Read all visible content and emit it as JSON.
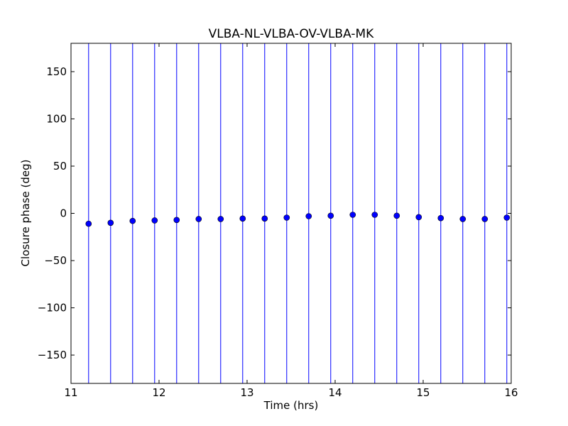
{
  "chart_data": {
    "type": "scatter",
    "title": "VLBA-NL-VLBA-OV-VLBA-MK",
    "xlabel": "Time (hrs)",
    "ylabel": "Closure phase (deg)",
    "xlim": [
      11,
      16
    ],
    "ylim": [
      -180,
      180
    ],
    "xticks": [
      11,
      12,
      13,
      14,
      15,
      16
    ],
    "yticks": [
      -150,
      -100,
      -50,
      0,
      50,
      100,
      150
    ],
    "xtick_labels": [
      "11",
      "12",
      "13",
      "14",
      "15",
      "16"
    ],
    "ytick_labels": [
      "−150",
      "−100",
      "−50",
      "0",
      "50",
      "100",
      "150"
    ],
    "grid": false,
    "colors": {
      "marker": "#0000ff",
      "errorbar": "#0000ff",
      "axes": "#000000"
    },
    "error_bars": {
      "lower": -180,
      "upper": 180
    },
    "points": [
      {
        "x": 11.2,
        "y": -11
      },
      {
        "x": 11.45,
        "y": -10
      },
      {
        "x": 11.7,
        "y": -8
      },
      {
        "x": 11.95,
        "y": -7.5
      },
      {
        "x": 12.2,
        "y": -7
      },
      {
        "x": 12.45,
        "y": -6
      },
      {
        "x": 12.7,
        "y": -6
      },
      {
        "x": 12.95,
        "y": -5.5
      },
      {
        "x": 13.2,
        "y": -5.5
      },
      {
        "x": 13.45,
        "y": -4.5
      },
      {
        "x": 13.7,
        "y": -3
      },
      {
        "x": 13.95,
        "y": -2.5
      },
      {
        "x": 14.2,
        "y": -1.5
      },
      {
        "x": 14.45,
        "y": -1.5
      },
      {
        "x": 14.7,
        "y": -2.5
      },
      {
        "x": 14.95,
        "y": -4
      },
      {
        "x": 15.2,
        "y": -5
      },
      {
        "x": 15.45,
        "y": -6
      },
      {
        "x": 15.7,
        "y": -6
      },
      {
        "x": 15.95,
        "y": -4.5
      }
    ]
  }
}
